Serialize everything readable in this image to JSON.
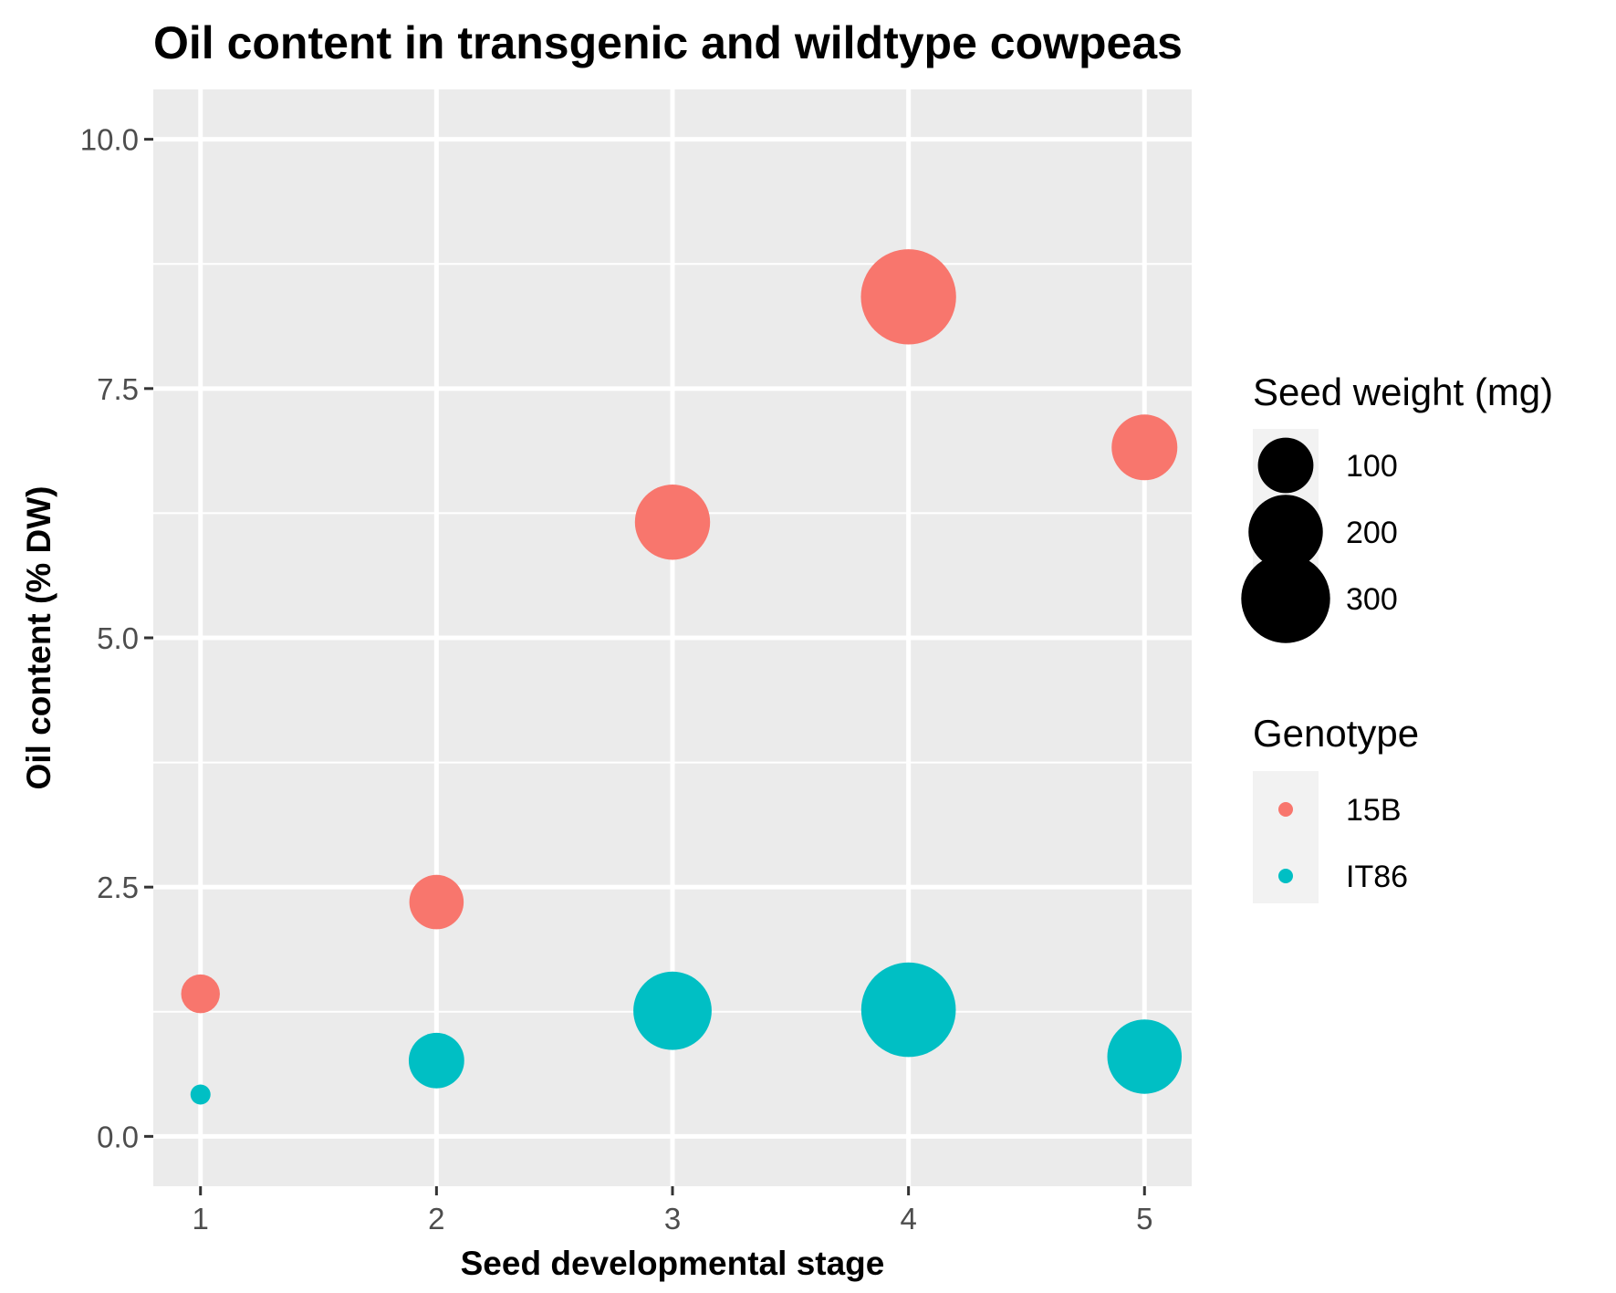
{
  "chart_data": {
    "type": "scatter",
    "title": "Oil content in transgenic and wildtype cowpeas",
    "xlabel": "Seed developmental stage",
    "ylabel": "Oil content (% DW)",
    "xlim": [
      0.8,
      5.2
    ],
    "ylim": [
      -0.5,
      10.5
    ],
    "x_ticks": [
      1,
      2,
      3,
      4,
      5
    ],
    "x_tick_labels": [
      "1",
      "2",
      "3",
      "4",
      "5"
    ],
    "y_ticks": [
      0,
      2.5,
      5,
      7.5,
      10
    ],
    "y_tick_labels": [
      "0.0",
      "2.5",
      "5.0",
      "7.5",
      "10.0"
    ],
    "grid": true,
    "panel_background": "#ebebeb",
    "grid_color": "#ffffff",
    "series": [
      {
        "name": "15B",
        "color": "#f8766d",
        "x": [
          1,
          2,
          3,
          4,
          5
        ],
        "y": [
          1.43,
          2.35,
          6.16,
          8.42,
          6.91
        ],
        "seed_weight_mg": [
          40,
          95,
          205,
          350,
          150
        ]
      },
      {
        "name": "IT86",
        "color": "#00bfc4",
        "x": [
          1,
          2,
          3,
          4,
          5
        ],
        "y": [
          0.42,
          0.76,
          1.26,
          1.27,
          0.8
        ],
        "seed_weight_mg": [
          5,
          100,
          225,
          345,
          200
        ]
      }
    ],
    "legend_placement": "right",
    "size_legend": {
      "title": "Seed weight (mg)",
      "entries": [
        {
          "label": "100",
          "value": 100
        },
        {
          "label": "200",
          "value": 200
        },
        {
          "label": "300",
          "value": 300
        }
      ]
    },
    "color_legend": {
      "title": "Genotype",
      "entries": [
        {
          "label": "15B",
          "color": "#f8766d"
        },
        {
          "label": "IT86",
          "color": "#00bfc4"
        }
      ]
    }
  }
}
